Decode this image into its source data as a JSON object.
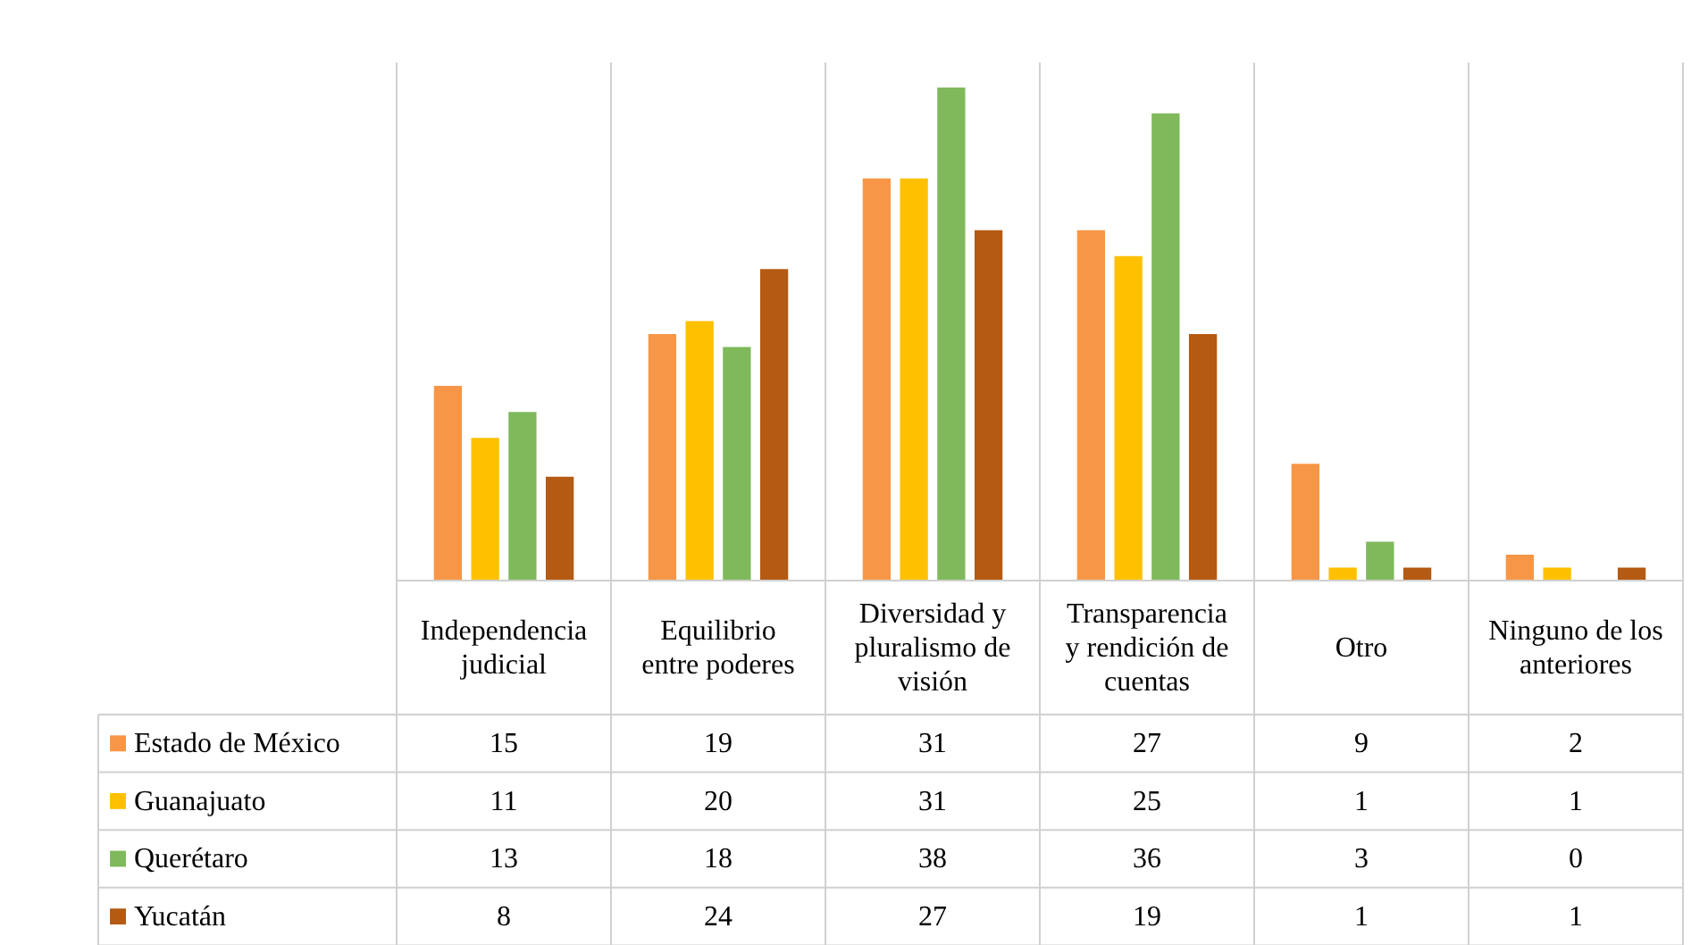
{
  "chart_data": {
    "type": "bar",
    "categories": [
      "Independencia judicial",
      "Equilibrio entre poderes",
      "Diversidad y pluralismo de visión",
      "Transparencia y rendición de cuentas",
      "Otro",
      "Ninguno de los anteriores"
    ],
    "series": [
      {
        "name": "Estado de México",
        "color": "#f79646",
        "values": [
          15,
          19,
          31,
          27,
          9,
          2
        ]
      },
      {
        "name": "Guanajuato",
        "color": "#ffc000",
        "values": [
          11,
          20,
          31,
          25,
          1,
          1
        ]
      },
      {
        "name": "Querétaro",
        "color": "#7fb95b",
        "values": [
          13,
          18,
          38,
          36,
          3,
          0
        ]
      },
      {
        "name": "Yucatán",
        "color": "#b45a12",
        "values": [
          8,
          24,
          27,
          19,
          1,
          1
        ]
      }
    ],
    "data_labels": true,
    "legend": "bottom"
  }
}
